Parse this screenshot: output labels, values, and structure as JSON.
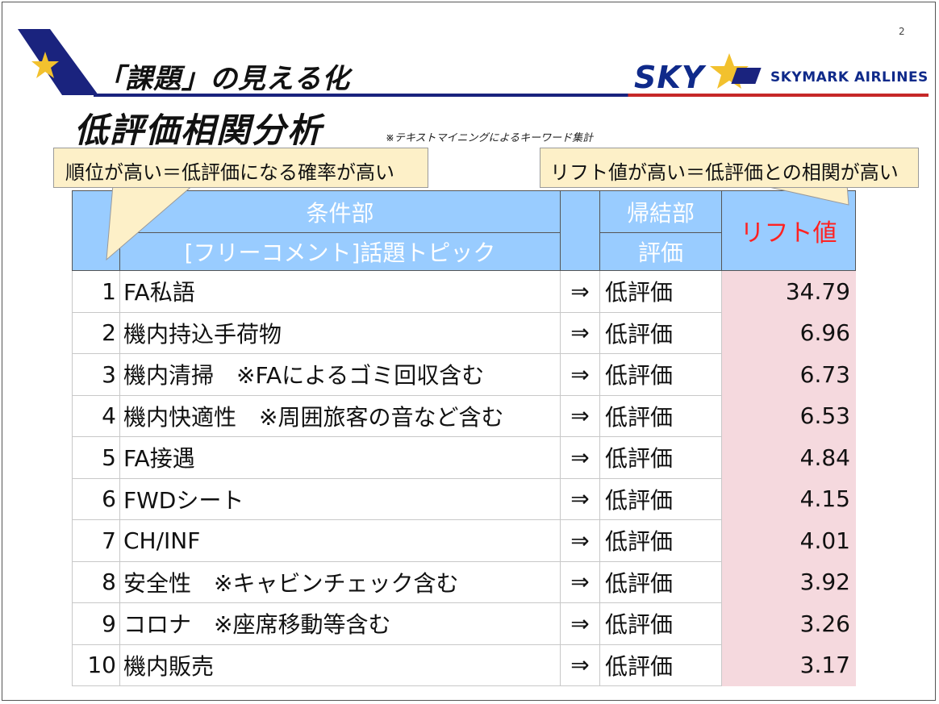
{
  "page": {
    "number": "2",
    "subtitle": "「課題」の見える化",
    "title": "低評価相関分析",
    "note": "※テキストマイニングによるキーワード集計"
  },
  "logo": {
    "sky_text": "SKY",
    "airline_text": "SKYMARK AIRLINES",
    "colors": {
      "navy": "#0f2a8a",
      "star": "#f2c12e",
      "line_red": "#c62828"
    }
  },
  "callouts": {
    "rank": "順位が高い＝低評価になる確率が高い",
    "lift": "リフト値が高い＝低評価との相関が高い"
  },
  "table": {
    "header": {
      "condition": "条件部",
      "condition_sub": "[フリーコメント]話題トピック",
      "conclusion": "帰結部",
      "conclusion_sub": "評価",
      "lift": "リフト値"
    },
    "arrow": "⇒",
    "rows": [
      {
        "rank": "1",
        "topic": "FA私語",
        "eval": "低評価",
        "lift": "34.79"
      },
      {
        "rank": "2",
        "topic": "機内持込手荷物",
        "eval": "低評価",
        "lift": "6.96"
      },
      {
        "rank": "3",
        "topic": "機内清掃　※FAによるゴミ回収含む",
        "eval": "低評価",
        "lift": "6.73"
      },
      {
        "rank": "4",
        "topic": "機内快適性　※周囲旅客の音など含む",
        "eval": "低評価",
        "lift": "6.53"
      },
      {
        "rank": "5",
        "topic": "FA接遇",
        "eval": "低評価",
        "lift": "4.84"
      },
      {
        "rank": "6",
        "topic": "FWDシート",
        "eval": "低評価",
        "lift": "4.15"
      },
      {
        "rank": "7",
        "topic": "CH/INF",
        "eval": "低評価",
        "lift": "4.01"
      },
      {
        "rank": "8",
        "topic": "安全性　※キャビンチェック含む",
        "eval": "低評価",
        "lift": "3.92"
      },
      {
        "rank": "9",
        "topic": "コロナ　※座席移動等含む",
        "eval": "低評価",
        "lift": "3.26"
      },
      {
        "rank": "10",
        "topic": "機内販売",
        "eval": "低評価",
        "lift": "3.17"
      }
    ]
  }
}
